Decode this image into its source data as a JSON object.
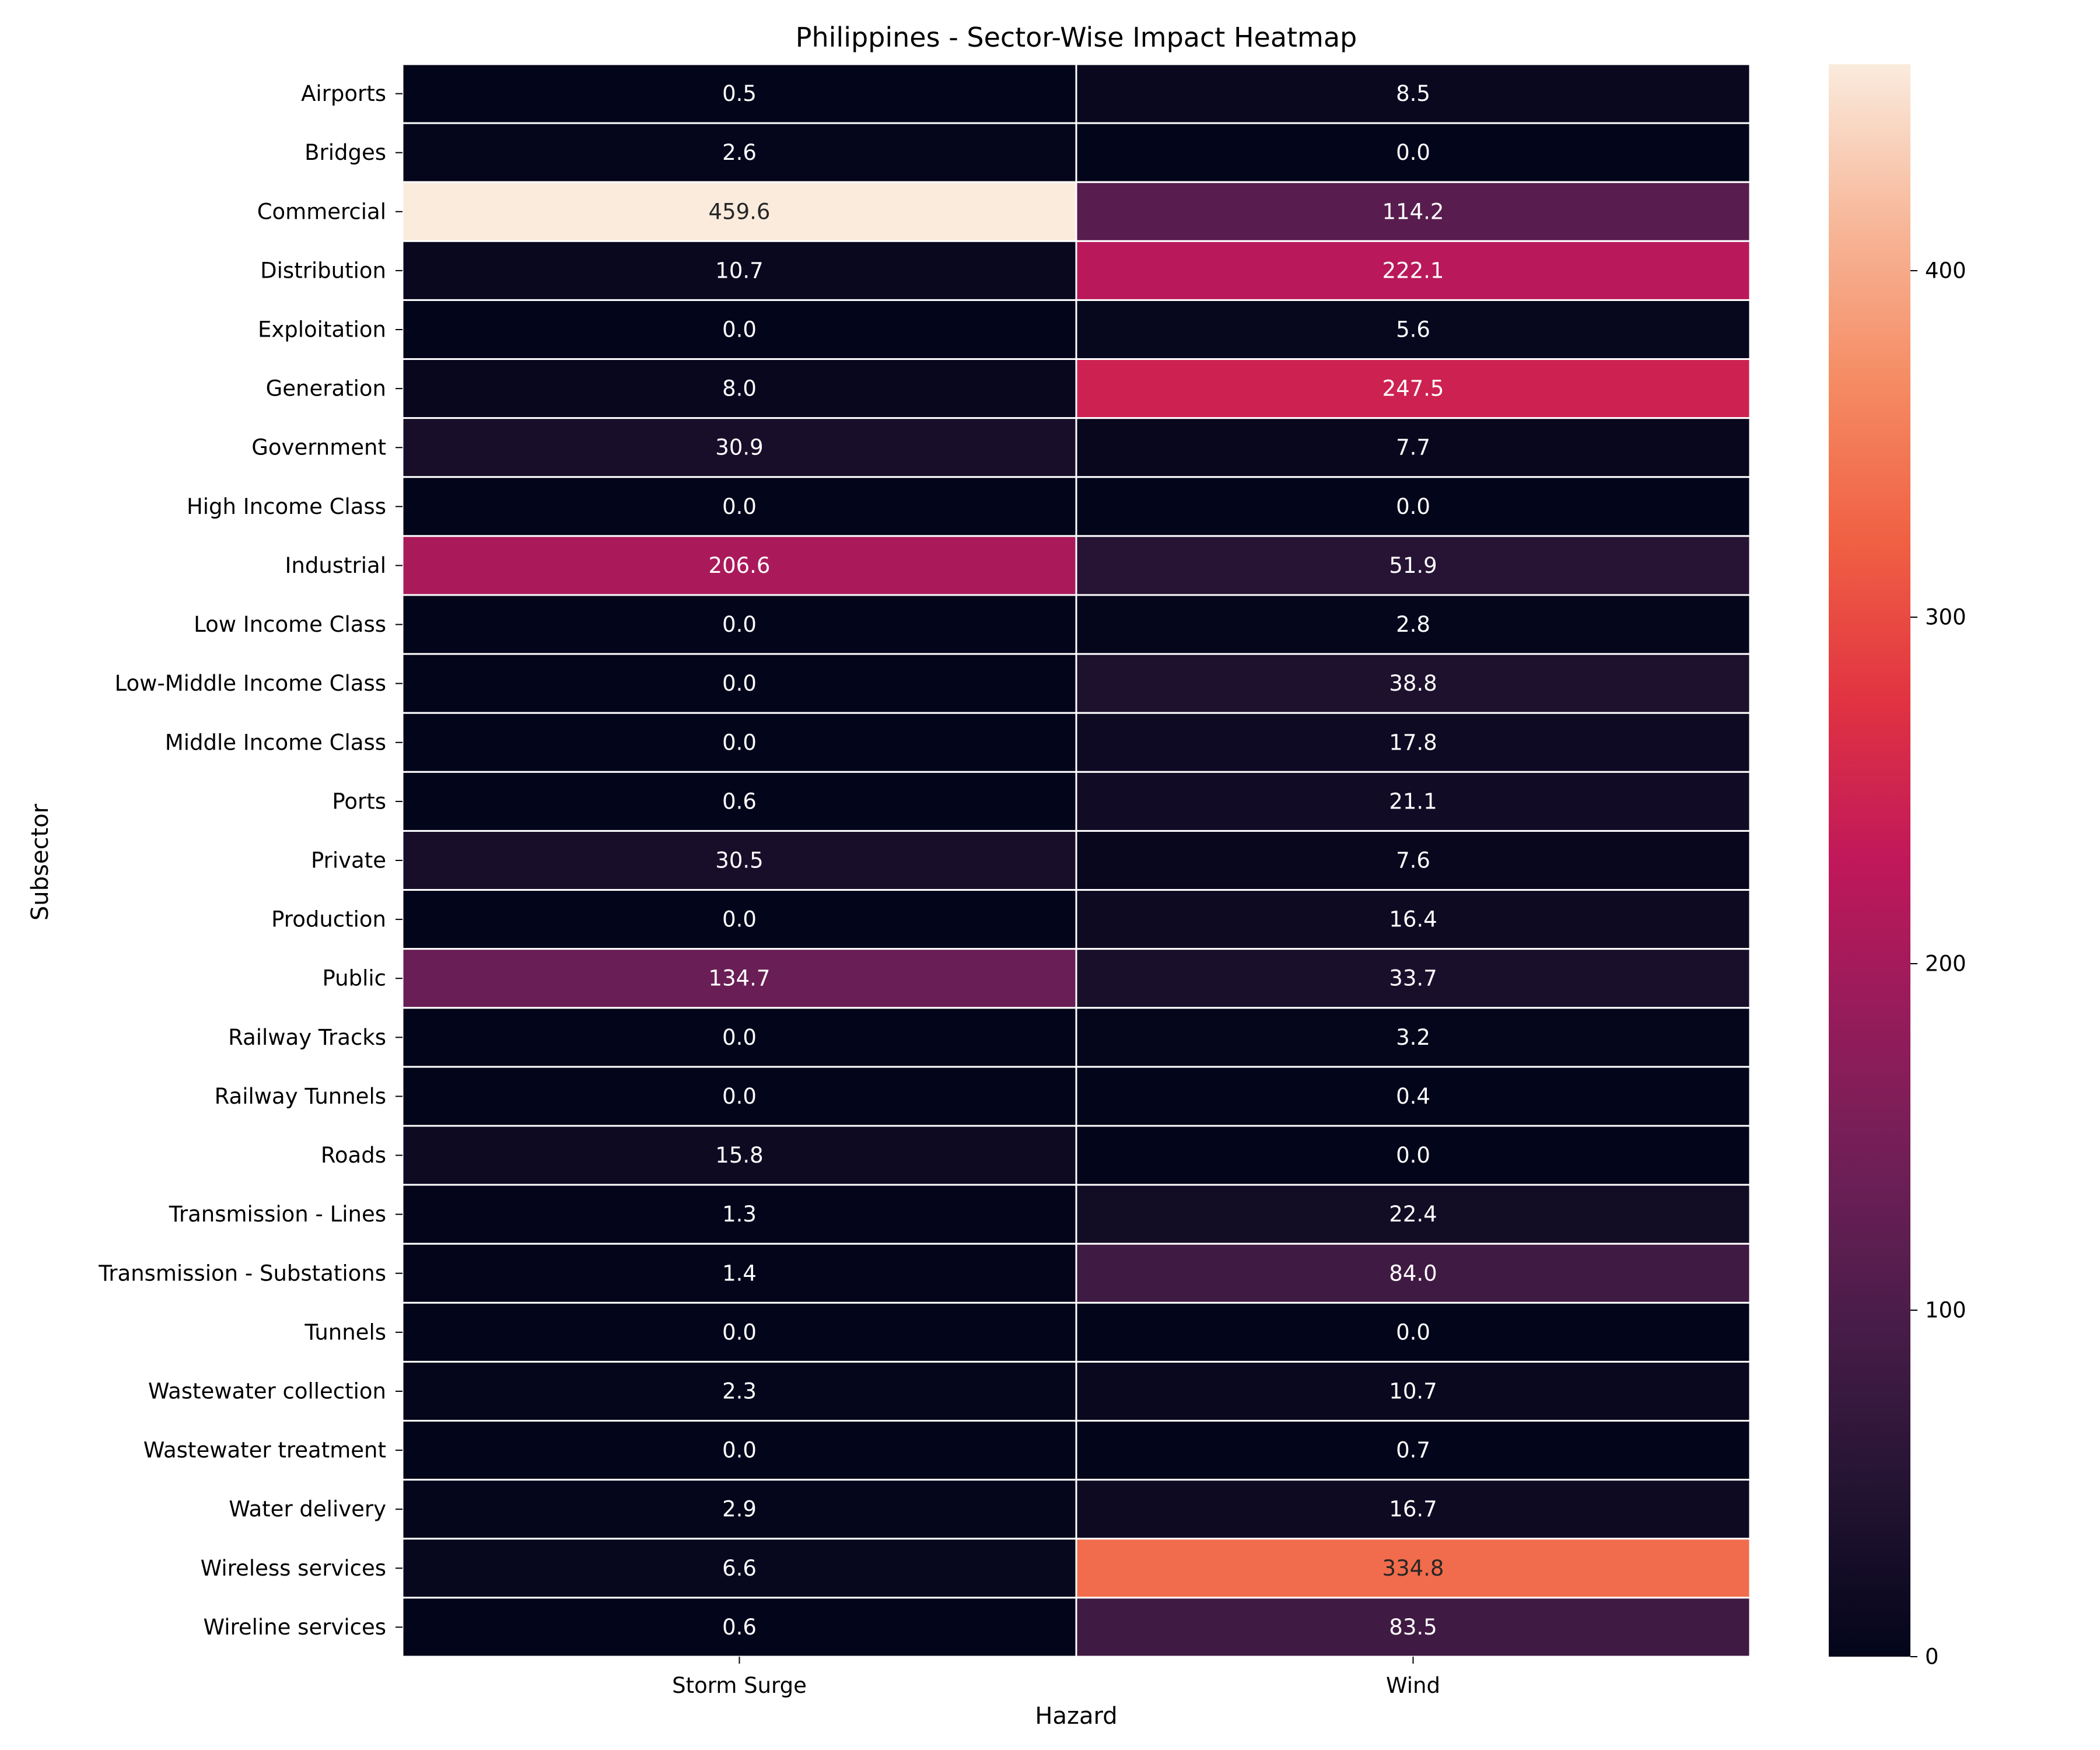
{
  "chart_data": {
    "type": "heatmap",
    "title": "Philippines - Sector-Wise Impact Heatmap",
    "xlabel": "Hazard",
    "ylabel": "Subsector",
    "x_categories": [
      "Storm Surge",
      "Wind"
    ],
    "y_categories": [
      "Airports",
      "Bridges",
      "Commercial",
      "Distribution",
      "Exploitation",
      "Generation",
      "Government",
      "High Income Class",
      "Industrial",
      "Low Income Class",
      "Low-Middle Income Class",
      "Middle Income Class",
      "Ports",
      "Private",
      "Production",
      "Public",
      "Railway Tracks",
      "Railway Tunnels",
      "Roads",
      "Transmission - Lines",
      "Transmission - Substations",
      "Tunnels",
      "Wastewater collection",
      "Wastewater treatment",
      "Water delivery",
      "Wireless services",
      "Wireline services"
    ],
    "values": [
      [
        0.5,
        8.5
      ],
      [
        2.6,
        0.0
      ],
      [
        459.6,
        114.2
      ],
      [
        10.7,
        222.1
      ],
      [
        0.0,
        5.6
      ],
      [
        8.0,
        247.5
      ],
      [
        30.9,
        7.7
      ],
      [
        0.0,
        0.0
      ],
      [
        206.6,
        51.9
      ],
      [
        0.0,
        2.8
      ],
      [
        0.0,
        38.8
      ],
      [
        0.0,
        17.8
      ],
      [
        0.6,
        21.1
      ],
      [
        30.5,
        7.6
      ],
      [
        0.0,
        16.4
      ],
      [
        134.7,
        33.7
      ],
      [
        0.0,
        3.2
      ],
      [
        0.0,
        0.4
      ],
      [
        15.8,
        0.0
      ],
      [
        1.3,
        22.4
      ],
      [
        1.4,
        84.0
      ],
      [
        0.0,
        0.0
      ],
      [
        2.3,
        10.7
      ],
      [
        0.0,
        0.7
      ],
      [
        2.9,
        16.7
      ],
      [
        6.6,
        334.8
      ],
      [
        0.6,
        83.5
      ]
    ],
    "colorbar": {
      "colormap": "rocket",
      "range": [
        0,
        459.6
      ],
      "ticks": [
        0,
        100,
        200,
        300,
        400
      ]
    },
    "annotation_format": "0.0",
    "grid": false,
    "legend": "colorbar-right"
  }
}
